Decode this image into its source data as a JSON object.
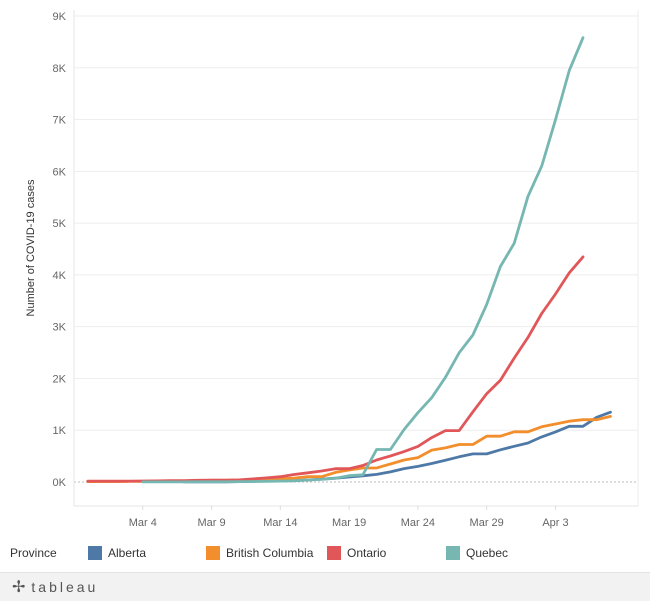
{
  "chart_data": {
    "type": "line",
    "ylabel": "Number of COVID-19 cases",
    "xlabel": "",
    "ylim": [
      0,
      9000
    ],
    "y_ticks": [
      0,
      1000,
      2000,
      3000,
      4000,
      5000,
      6000,
      7000,
      8000,
      9000
    ],
    "y_tick_labels": [
      "0K",
      "1K",
      "2K",
      "3K",
      "4K",
      "5K",
      "6K",
      "7K",
      "8K",
      "9K"
    ],
    "x_range": [
      "2020-02-28",
      "2020-04-09"
    ],
    "x_ticks": [
      "2020-03-04",
      "2020-03-09",
      "2020-03-14",
      "2020-03-19",
      "2020-03-24",
      "2020-03-29",
      "2020-04-03"
    ],
    "x_tick_labels": [
      "Mar 4",
      "Mar 9",
      "Mar 14",
      "Mar 19",
      "Mar 24",
      "Mar 29",
      "Apr 3"
    ],
    "grid": true,
    "legend_title": "Province",
    "legend_position": "bottom",
    "series": [
      {
        "name": "Alberta",
        "color": "#4e79a7",
        "start": "2020-03-07",
        "values": [
          1,
          1,
          2,
          4,
          7,
          14,
          19,
          23,
          29,
          39,
          56,
          74,
          97,
          119,
          146,
          195,
          259,
          301,
          358,
          419,
          486,
          542,
          542,
          621,
          690,
          754,
          871,
          968,
          1075,
          1075,
          1250,
          1348
        ]
      },
      {
        "name": "British Columbia",
        "color": "#f28e2b",
        "start": "2020-02-29",
        "values": [
          8,
          8,
          8,
          12,
          12,
          13,
          21,
          21,
          27,
          32,
          32,
          39,
          46,
          53,
          64,
          73,
          103,
          103,
          186,
          231,
          271,
          271,
          348,
          424,
          472,
          617,
          659,
          725,
          725,
          884,
          884,
          970,
          970,
          1066,
          1121,
          1174,
          1203,
          1203,
          1266
        ]
      },
      {
        "name": "Ontario",
        "color": "#e15759",
        "start": "2020-02-29",
        "values": [
          15,
          18,
          18,
          18,
          20,
          22,
          25,
          28,
          32,
          34,
          36,
          41,
          59,
          79,
          103,
          145,
          177,
          212,
          257,
          257,
          318,
          425,
          503,
          588,
          688,
          858,
          993,
          993,
          1355,
          1706,
          1966,
          2392,
          2793,
          3255,
          3630,
          4038,
          4347
        ]
      },
      {
        "name": "Quebec",
        "color": "#76b7b2",
        "start": "2020-03-04",
        "values": [
          1,
          1,
          2,
          2,
          3,
          4,
          4,
          7,
          9,
          13,
          17,
          24,
          39,
          50,
          74,
          121,
          139,
          628,
          628,
          1013,
          1339,
          1629,
          2021,
          2498,
          2840,
          3430,
          4162,
          4611,
          5518,
          6101,
          6997,
          7944,
          8580
        ]
      }
    ]
  },
  "footer": {
    "brand": "tableau",
    "brand_icon": "tableau-plus-icon"
  }
}
